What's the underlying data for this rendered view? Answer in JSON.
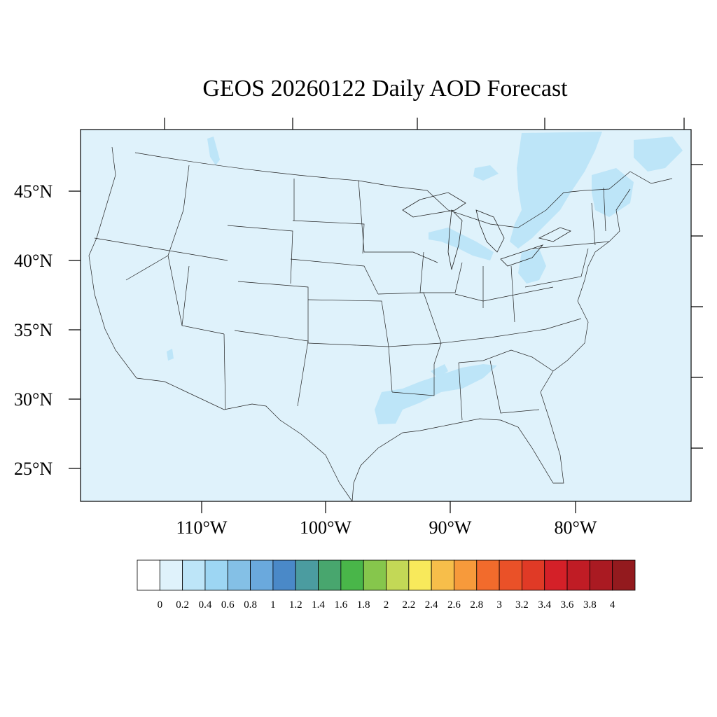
{
  "title": "GEOS 20260122 Daily AOD Forecast",
  "latitude_labels": [
    "45°N",
    "40°N",
    "35°N",
    "30°N",
    "25°N"
  ],
  "longitude_labels": [
    "110°W",
    "100°W",
    "90°W",
    "80°W"
  ],
  "map": {
    "background_color": "#dff2fb",
    "plume_color": "#bde5f8",
    "dominant_aod_range": "0.2 - 0.4"
  },
  "colorbar": {
    "labels": [
      "0",
      "0.2",
      "0.4",
      "0.6",
      "0.8",
      "1",
      "1.2",
      "1.4",
      "1.6",
      "1.8",
      "2",
      "2.2",
      "2.4",
      "2.6",
      "2.8",
      "3",
      "3.2",
      "3.4",
      "3.6",
      "3.8",
      "4"
    ],
    "colors": [
      "#ffffff",
      "#dff2fb",
      "#bde5f8",
      "#9dd6f3",
      "#84c0e6",
      "#6aa9dd",
      "#4a89c8",
      "#4b9ca0",
      "#48a66e",
      "#49b649",
      "#86c64c",
      "#c3d856",
      "#f8e95b",
      "#f7be4a",
      "#f79a3b",
      "#f26b2c",
      "#ea5128",
      "#e03a26",
      "#d42028",
      "#c01c25",
      "#aa1a22",
      "#931a1e"
    ]
  }
}
